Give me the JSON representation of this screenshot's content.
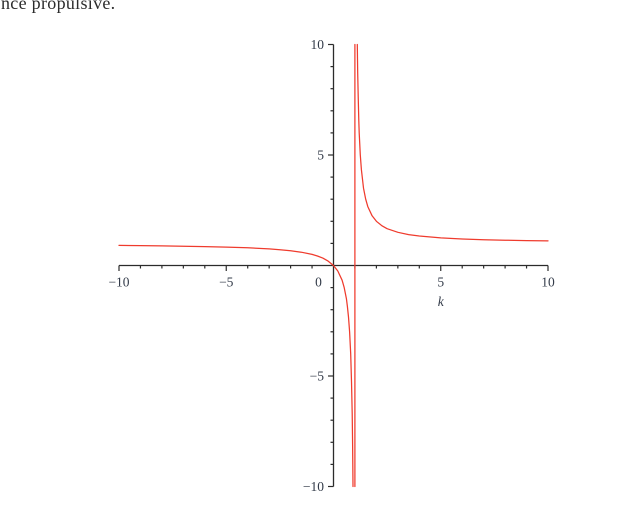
{
  "page": {
    "clipped_text_fragment": "nce propulsive."
  },
  "chart_data": {
    "type": "line",
    "title": "",
    "xlabel": "k",
    "ylabel": "",
    "xlim": [
      -10,
      10
    ],
    "ylim": [
      -10,
      10
    ],
    "grid": false,
    "legend": "none",
    "colors": {
      "curve": "#ef3b2d",
      "axis": "#2b2b2b",
      "tick_label": "#333b49"
    },
    "x_ticks": {
      "minor_step": 1,
      "major": [
        {
          "v": -10,
          "label": "−10"
        },
        {
          "v": -5,
          "label": "−5"
        },
        {
          "v": 0,
          "label": "0"
        },
        {
          "v": 5,
          "label": "5"
        },
        {
          "v": 10,
          "label": "10"
        }
      ]
    },
    "y_ticks": {
      "minor_step": 1,
      "major": [
        {
          "v": 10,
          "label": "10"
        },
        {
          "v": 5,
          "label": "5"
        },
        {
          "v": -5,
          "label": "−5"
        },
        {
          "v": -10,
          "label": "−10"
        }
      ]
    },
    "series": [
      {
        "name": "curve",
        "segments": [
          [
            [
              -10,
              0.9091
            ],
            [
              -9,
              0.9
            ],
            [
              -8,
              0.8889
            ],
            [
              -7,
              0.875
            ],
            [
              -6,
              0.8571
            ],
            [
              -5,
              0.8333
            ],
            [
              -4,
              0.8
            ],
            [
              -3,
              0.75
            ],
            [
              -2.5,
              0.7143
            ],
            [
              -2,
              0.6667
            ],
            [
              -1.5,
              0.6
            ],
            [
              -1,
              0.5
            ],
            [
              -0.75,
              0.4286
            ],
            [
              -0.5,
              0.3333
            ],
            [
              -0.25,
              0.2
            ],
            [
              0,
              0
            ],
            [
              0.2,
              -0.25
            ],
            [
              0.4,
              -0.6667
            ],
            [
              0.5,
              -1
            ],
            [
              0.6,
              -1.5
            ],
            [
              0.65,
              -1.8571
            ],
            [
              0.7,
              -2.3333
            ],
            [
              0.75,
              -3
            ],
            [
              0.8,
              -4
            ],
            [
              0.84,
              -5.25
            ],
            [
              0.87,
              -6.6923
            ],
            [
              0.89,
              -8.0909
            ],
            [
              0.9,
              -9
            ],
            [
              0.9091,
              -10
            ]
          ],
          [
            [
              1,
              -10
            ],
            [
              1,
              10
            ]
          ],
          [
            [
              1.1111,
              10
            ],
            [
              1.12,
              9.3333
            ],
            [
              1.13,
              8.6923
            ],
            [
              1.15,
              7.6667
            ],
            [
              1.18,
              6.5556
            ],
            [
              1.2,
              6
            ],
            [
              1.25,
              5
            ],
            [
              1.3,
              4.3333
            ],
            [
              1.4,
              3.5
            ],
            [
              1.5,
              3
            ],
            [
              1.6,
              2.6667
            ],
            [
              1.8,
              2.25
            ],
            [
              2,
              2
            ],
            [
              2.25,
              1.8
            ],
            [
              2.5,
              1.6667
            ],
            [
              3,
              1.5
            ],
            [
              3.5,
              1.4
            ],
            [
              4,
              1.3333
            ],
            [
              5,
              1.25
            ],
            [
              6,
              1.2
            ],
            [
              7,
              1.1667
            ],
            [
              8,
              1.1429
            ],
            [
              9,
              1.125
            ],
            [
              10,
              1.1111
            ]
          ]
        ]
      }
    ]
  }
}
